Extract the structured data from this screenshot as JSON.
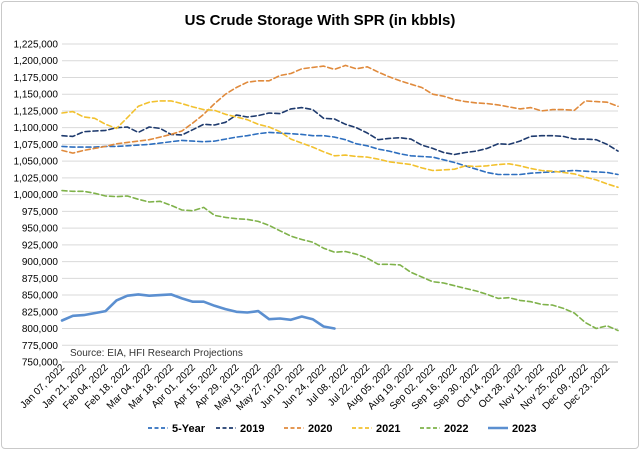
{
  "chart_data": {
    "type": "line",
    "title": "US Crude Storage With SPR (in kbbls)",
    "source_note": "Source: EIA, HFI Research Projections",
    "ylim": [
      750000,
      1225000
    ],
    "y_ticks": [
      750000,
      775000,
      800000,
      825000,
      850000,
      875000,
      900000,
      925000,
      950000,
      975000,
      1000000,
      1025000,
      1050000,
      1075000,
      1100000,
      1125000,
      1150000,
      1175000,
      1200000,
      1225000
    ],
    "y_tick_labels": [
      "750,000",
      "775,000",
      "800,000",
      "825,000",
      "850,000",
      "875,000",
      "900,000",
      "925,000",
      "950,000",
      "975,000",
      "1,000,000",
      "1,025,000",
      "1,050,000",
      "1,075,000",
      "1,100,000",
      "1,125,000",
      "1,150,000",
      "1,175,000",
      "1,200,000",
      "1,225,000"
    ],
    "x_tick_labels": [
      "Jan 07, 2022",
      "Jan 21, 2022",
      "Feb 04, 2022",
      "Feb 18, 2022",
      "Mar 04, 2022",
      "Mar 18, 2022",
      "Apr 01, 2022",
      "Apr 15, 2022",
      "Apr 29, 2022",
      "May 13, 2022",
      "May 27, 2022",
      "Jun 10, 2022",
      "Jun 24, 2022",
      "Jul 08, 2022",
      "Jul 22, 2022",
      "Aug 05, 2022",
      "Aug 19, 2022",
      "Sep 02, 2022",
      "Sep 16, 2022",
      "Sep 30, 2022",
      "Oct 14, 2022",
      "Oct 28, 2022",
      "Nov 11, 2022",
      "Nov 25, 2022",
      "Dec 09, 2022",
      "Dec 23, 2022"
    ],
    "weeks_total": 52,
    "series": [
      {
        "name": "5-Year",
        "color": "#2e6fbf",
        "dash": "5,3",
        "width": 1.6,
        "values": [
          1072000,
          1071000,
          1071000,
          1071000,
          1072000,
          1072000,
          1073000,
          1074000,
          1075000,
          1077000,
          1079000,
          1081000,
          1080000,
          1079000,
          1080000,
          1083000,
          1086000,
          1088000,
          1091000,
          1093000,
          1092000,
          1091000,
          1090000,
          1088000,
          1088000,
          1086000,
          1082000,
          1076000,
          1073000,
          1068000,
          1065000,
          1061000,
          1058000,
          1057000,
          1056000,
          1052000,
          1048000,
          1043000,
          1038000,
          1033000,
          1030000,
          1030000,
          1030000,
          1032000,
          1033000,
          1034000,
          1035000,
          1036000,
          1035000,
          1034000,
          1033000,
          1030000
        ]
      },
      {
        "name": "2019",
        "color": "#1f3b6e",
        "dash": "5,3",
        "width": 1.6,
        "values": [
          1088000,
          1087000,
          1094000,
          1095000,
          1096000,
          1100000,
          1101000,
          1093000,
          1101000,
          1099000,
          1090000,
          1089000,
          1097000,
          1105000,
          1104000,
          1108000,
          1119000,
          1116000,
          1118000,
          1122000,
          1121000,
          1128000,
          1130000,
          1127000,
          1114000,
          1113000,
          1105000,
          1100000,
          1092000,
          1082000,
          1084000,
          1085000,
          1083000,
          1074000,
          1069000,
          1063000,
          1060000,
          1063000,
          1065000,
          1069000,
          1076000,
          1075000,
          1080000,
          1087000,
          1088000,
          1088000,
          1087000,
          1083000,
          1083000,
          1082000,
          1075000,
          1065000
        ]
      },
      {
        "name": "2020",
        "color": "#e08a3c",
        "dash": "5,3",
        "width": 1.6,
        "values": [
          1066000,
          1062000,
          1066000,
          1069000,
          1072000,
          1076000,
          1078000,
          1080000,
          1082000,
          1086000,
          1090000,
          1095000,
          1107000,
          1120000,
          1136000,
          1150000,
          1160000,
          1168000,
          1170000,
          1170000,
          1178000,
          1181000,
          1188000,
          1190000,
          1192000,
          1187000,
          1193000,
          1188000,
          1191000,
          1183000,
          1176000,
          1170000,
          1165000,
          1160000,
          1150000,
          1147000,
          1142000,
          1139000,
          1137000,
          1136000,
          1134000,
          1131000,
          1128000,
          1130000,
          1125000,
          1127000,
          1127000,
          1126000,
          1140000,
          1139000,
          1138000,
          1132000
        ]
      },
      {
        "name": "2021",
        "color": "#f2c12e",
        "dash": "5,3",
        "width": 1.6,
        "values": [
          1122000,
          1124000,
          1116000,
          1114000,
          1105000,
          1099000,
          1115000,
          1132000,
          1138000,
          1140000,
          1140000,
          1136000,
          1131000,
          1127000,
          1126000,
          1120000,
          1116000,
          1112000,
          1105000,
          1101000,
          1094000,
          1083000,
          1077000,
          1071000,
          1064000,
          1058000,
          1059000,
          1057000,
          1056000,
          1053000,
          1049000,
          1047000,
          1045000,
          1040000,
          1036000,
          1037000,
          1038000,
          1043000,
          1042000,
          1043000,
          1045000,
          1046000,
          1043000,
          1039000,
          1036000,
          1035000,
          1033000,
          1031000,
          1026000,
          1022000,
          1016000,
          1011000
        ]
      },
      {
        "name": "2022",
        "color": "#7fb24a",
        "dash": "5,3",
        "width": 1.6,
        "values": [
          1006000,
          1005000,
          1005000,
          1002000,
          998000,
          997000,
          998000,
          993000,
          989000,
          990000,
          984000,
          977000,
          976000,
          981000,
          969000,
          966000,
          964000,
          963000,
          960000,
          954000,
          946000,
          938000,
          933000,
          929000,
          920000,
          914000,
          915000,
          911000,
          905000,
          896000,
          896000,
          895000,
          884000,
          877000,
          870000,
          868000,
          864000,
          860000,
          856000,
          851000,
          845000,
          846000,
          842000,
          840000,
          836000,
          835000,
          830000,
          823000,
          809000,
          800000,
          804000,
          797000
        ]
      },
      {
        "name": "2023",
        "color": "#5b8fd0",
        "dash": "",
        "width": 2.6,
        "values": [
          812000,
          819000,
          820000,
          823000,
          826000,
          842000,
          849000,
          851000,
          849000,
          850000,
          851000,
          845000,
          840000,
          840000,
          834000,
          829000,
          825000,
          824000,
          826000,
          814000,
          815000,
          813000,
          818000,
          814000,
          803000,
          800000
        ]
      }
    ]
  }
}
